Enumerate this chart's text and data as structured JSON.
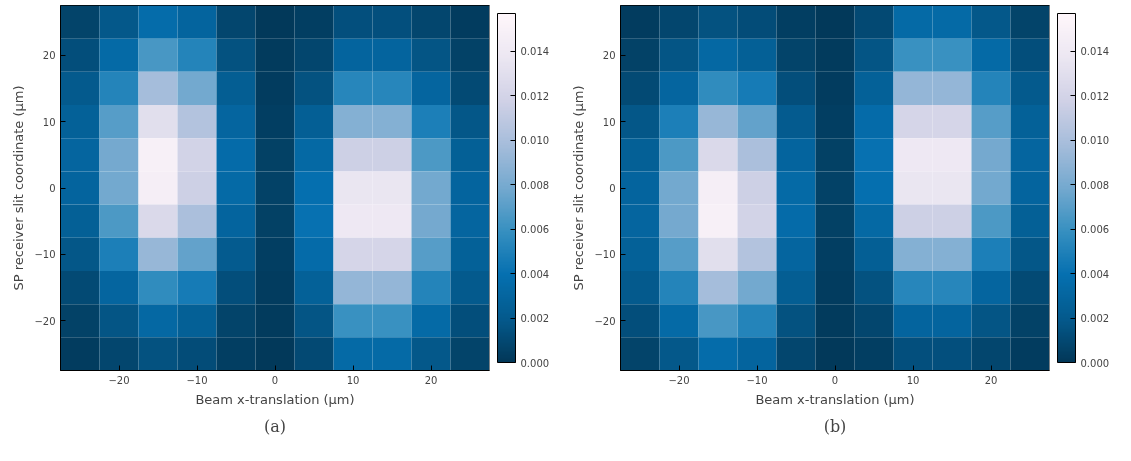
{
  "chart_data": [
    {
      "type": "heatmap",
      "xlabel": "Beam x-translation (μm)",
      "ylabel": "SP receiver slit coordinate (μm)",
      "annotations": [
        "(a)"
      ],
      "categories": [
        null,
        "−20",
        null,
        "−10",
        null,
        "0",
        null,
        "10",
        null,
        "20",
        null
      ],
      "y_categories": [
        null,
        "20",
        null,
        "10",
        null,
        "0",
        null,
        "−10",
        null,
        "−20",
        null
      ],
      "clim": [
        0,
        0.0157
      ],
      "cticks": [
        {
          "value": 0,
          "label": "0.000"
        },
        {
          "value": 0.002,
          "label": "0.002"
        },
        {
          "value": 0.004,
          "label": "0.004"
        },
        {
          "value": 0.006,
          "label": "0.006"
        },
        {
          "value": 0.008,
          "label": "0.008"
        },
        {
          "value": 0.01,
          "label": "0.010"
        },
        {
          "value": 0.012,
          "label": "0.012"
        },
        {
          "value": 0.014,
          "label": "0.014"
        }
      ],
      "cells": [
        [
          0.0007,
          0.0019,
          0.0036,
          0.0029,
          0.0008,
          0.0001,
          0.0004,
          0.0014,
          0.0014,
          0.0008,
          0.0003
        ],
        [
          0.0013,
          0.0034,
          0.0065,
          0.0052,
          0.0015,
          0.0002,
          0.0008,
          0.0029,
          0.0029,
          0.0017,
          0.0006
        ],
        [
          0.002,
          0.0052,
          0.0098,
          0.0078,
          0.0023,
          0.0003,
          0.0015,
          0.0053,
          0.0053,
          0.003,
          0.0011
        ],
        [
          0.0026,
          0.0069,
          0.013,
          0.0104,
          0.003,
          0.0004,
          0.0024,
          0.0085,
          0.0085,
          0.0049,
          0.0018
        ],
        [
          0.003,
          0.0079,
          0.0149,
          0.0119,
          0.0035,
          0.0005,
          0.0033,
          0.0116,
          0.0116,
          0.0066,
          0.0025
        ],
        [
          0.0029,
          0.0078,
          0.0146,
          0.0116,
          0.0034,
          0.0006,
          0.0039,
          0.0136,
          0.0136,
          0.0078,
          0.0029
        ],
        [
          0.0025,
          0.0066,
          0.0125,
          0.01,
          0.0029,
          0.0005,
          0.004,
          0.0139,
          0.0139,
          0.0079,
          0.003
        ],
        [
          0.0018,
          0.0049,
          0.0092,
          0.0073,
          0.0021,
          0.0004,
          0.0035,
          0.0121,
          0.0121,
          0.0069,
          0.0026
        ],
        [
          0.0011,
          0.003,
          0.0057,
          0.0046,
          0.0013,
          0.0003,
          0.0026,
          0.0091,
          0.0091,
          0.0052,
          0.002
        ],
        [
          0.0006,
          0.0017,
          0.0032,
          0.0025,
          0.0007,
          0.0002,
          0.0017,
          0.006,
          0.006,
          0.0034,
          0.0013
        ],
        [
          0.0003,
          0.0008,
          0.0015,
          0.0012,
          0.0004,
          0.0001,
          0.001,
          0.0034,
          0.0034,
          0.0019,
          0.0007
        ]
      ]
    },
    {
      "type": "heatmap",
      "xlabel": "Beam x-translation (μm)",
      "ylabel": "SP receiver slit coordinate (μm)",
      "annotations": [
        "(b)"
      ],
      "categories": [
        null,
        "−20",
        null,
        "−10",
        null,
        "0",
        null,
        "10",
        null,
        "20",
        null
      ],
      "y_categories": [
        null,
        "20",
        null,
        "10",
        null,
        "0",
        null,
        "−10",
        null,
        "−20",
        null
      ],
      "clim": [
        0,
        0.0157
      ],
      "cticks": [
        {
          "value": 0,
          "label": "0.000"
        },
        {
          "value": 0.002,
          "label": "0.002"
        },
        {
          "value": 0.004,
          "label": "0.004"
        },
        {
          "value": 0.006,
          "label": "0.006"
        },
        {
          "value": 0.008,
          "label": "0.008"
        },
        {
          "value": 0.01,
          "label": "0.010"
        },
        {
          "value": 0.012,
          "label": "0.012"
        },
        {
          "value": 0.014,
          "label": "0.014"
        }
      ],
      "cells": [
        [
          0.0003,
          0.0008,
          0.0015,
          0.0012,
          0.0004,
          0.0001,
          0.001,
          0.0034,
          0.0034,
          0.0019,
          0.0007
        ],
        [
          0.0006,
          0.0017,
          0.0032,
          0.0025,
          0.0007,
          0.0002,
          0.0017,
          0.006,
          0.006,
          0.0034,
          0.0013
        ],
        [
          0.0011,
          0.003,
          0.0057,
          0.0046,
          0.0013,
          0.0003,
          0.0026,
          0.0091,
          0.0091,
          0.0052,
          0.002
        ],
        [
          0.0018,
          0.0049,
          0.0092,
          0.0073,
          0.0021,
          0.0004,
          0.0035,
          0.0121,
          0.0121,
          0.0069,
          0.0026
        ],
        [
          0.0025,
          0.0066,
          0.0125,
          0.01,
          0.0029,
          0.0005,
          0.004,
          0.0139,
          0.0139,
          0.0079,
          0.003
        ],
        [
          0.0029,
          0.0078,
          0.0146,
          0.0116,
          0.0034,
          0.0006,
          0.0039,
          0.0136,
          0.0136,
          0.0078,
          0.0029
        ],
        [
          0.003,
          0.0079,
          0.0149,
          0.0119,
          0.0035,
          0.0005,
          0.0033,
          0.0116,
          0.0116,
          0.0066,
          0.0025
        ],
        [
          0.0026,
          0.0069,
          0.013,
          0.0104,
          0.003,
          0.0004,
          0.0024,
          0.0085,
          0.0085,
          0.0049,
          0.0018
        ],
        [
          0.002,
          0.0052,
          0.0098,
          0.0078,
          0.0023,
          0.0003,
          0.0015,
          0.0053,
          0.0053,
          0.003,
          0.0011
        ],
        [
          0.0013,
          0.0034,
          0.0065,
          0.0052,
          0.0015,
          0.0002,
          0.0008,
          0.0029,
          0.0029,
          0.0017,
          0.0006
        ],
        [
          0.0007,
          0.0019,
          0.0036,
          0.0029,
          0.0008,
          0.0001,
          0.0004,
          0.0014,
          0.0014,
          0.0008,
          0.0003
        ]
      ]
    }
  ]
}
